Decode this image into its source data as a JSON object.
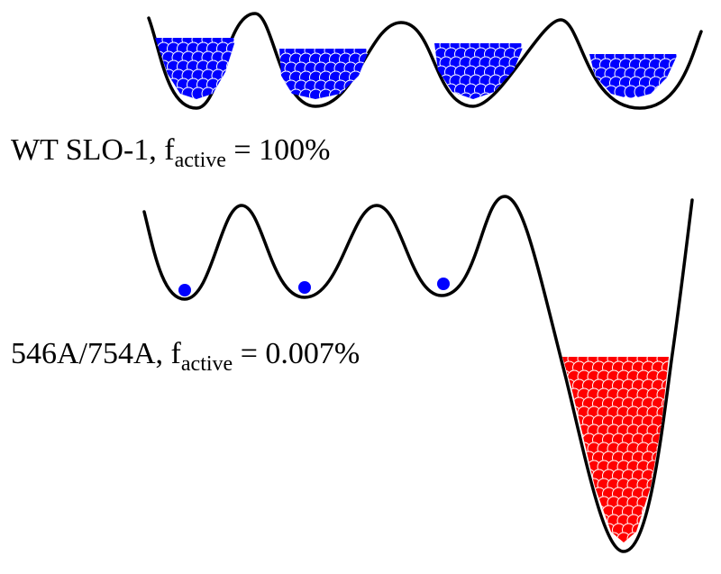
{
  "colors": {
    "curve": "#000000",
    "conformer_blue": "#0000ff",
    "conformer_red": "#ff0000",
    "background": "#ffffff"
  },
  "panels": [
    {
      "id": "wt",
      "label_prefix": "WT SLO-1, f",
      "label_subscript": "active",
      "label_suffix": " = 100%"
    },
    {
      "id": "mutant",
      "label_prefix": "546A/754A, f",
      "label_subscript": "active",
      "label_suffix": " = 0.007%"
    }
  ]
}
